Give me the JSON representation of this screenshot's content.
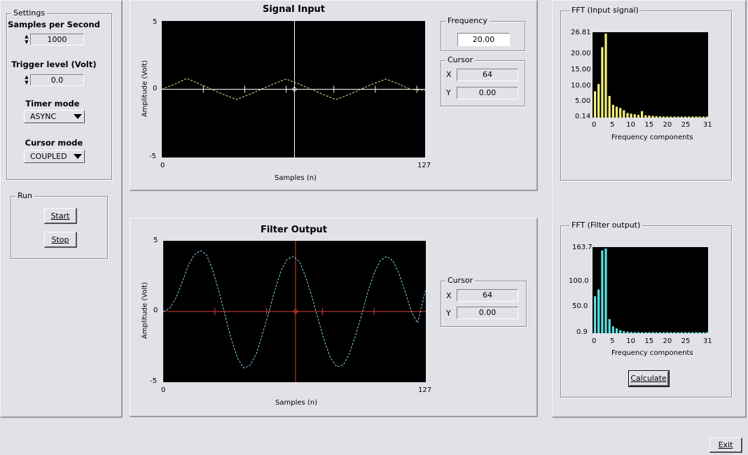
{
  "settings": {
    "group_label": "Settings",
    "samples_label": "Samples per Second",
    "samples_value": "1000",
    "trigger_label": "Trigger level (Volt)",
    "trigger_value": "0.0",
    "timer_label": "Timer mode",
    "timer_value": "ASYNC",
    "cursor_mode_label": "Cursor mode",
    "cursor_mode_value": "COUPLED"
  },
  "run": {
    "group_label": "Run",
    "start_label": "Start",
    "stop_label": "Stop"
  },
  "signal_input": {
    "title": "Signal Input",
    "y_label": "Amplitude (Volt)",
    "x_label": "Samples (n)",
    "y_ticks": [
      "5",
      "0",
      "-5"
    ],
    "x_ticks": [
      "0",
      "127"
    ],
    "frequency_label": "Frequency",
    "frequency_value": "20.00",
    "cursor_label": "Cursor",
    "cursor_x_label": "X",
    "cursor_x_value": "64",
    "cursor_y_label": "Y",
    "cursor_y_value": "0.00"
  },
  "filter_output": {
    "title": "Filter Output",
    "y_label": "Amplitude (Volt)",
    "x_label": "Samples (n)",
    "y_ticks": [
      "5",
      "0",
      "-5"
    ],
    "x_ticks": [
      "0",
      "127"
    ],
    "cursor_label": "Cursor",
    "cursor_x_label": "X",
    "cursor_x_value": "64",
    "cursor_y_label": "Y",
    "cursor_y_value": "0.00"
  },
  "fft_input": {
    "group_label": "FFT  (Input signal)",
    "x_label": "Frequency components",
    "y_ticks": [
      "26.81",
      "20.00",
      "15.00",
      "10.00",
      "5.00",
      "0.14"
    ],
    "x_ticks": [
      "0",
      "5",
      "10",
      "15",
      "20",
      "25",
      "31"
    ]
  },
  "fft_filter": {
    "group_label": "FFT (Filter output)",
    "x_label": "Frequency components",
    "y_ticks": [
      "163.7",
      "100.0",
      "50.0",
      "0.9"
    ],
    "x_ticks": [
      "0",
      "5",
      "10",
      "15",
      "20",
      "25",
      "31"
    ],
    "calculate_label": "Calculate"
  },
  "exit_label": "Exit",
  "colors": {
    "background": "#e1e1e8",
    "plot_background": "#000000",
    "input_wave": "#f0e68c",
    "input_cursor": "#ffffff",
    "output_wave": "#7fd8e8",
    "output_cursor": "#e04030",
    "fft_input_bars": "#f4f07a",
    "fft_filter_bars": "#5ce0e0"
  },
  "chart_data": [
    {
      "type": "line",
      "name": "signal_input",
      "title": "Signal Input",
      "xlabel": "Samples (n)",
      "ylabel": "Amplitude (Volt)",
      "xlim": [
        0,
        127
      ],
      "ylim": [
        -5,
        5
      ],
      "grid": false,
      "cursor": {
        "x": 64,
        "y": 0.0
      },
      "x": [
        0,
        6,
        12,
        18,
        24,
        30,
        36,
        42,
        48,
        54,
        60,
        64,
        66,
        72,
        78,
        84,
        90,
        96,
        102,
        108,
        114,
        120,
        127
      ],
      "y": [
        0.0,
        0.35,
        0.8,
        0.4,
        0.0,
        -0.4,
        -0.75,
        -0.4,
        0.0,
        0.4,
        0.75,
        0.5,
        0.4,
        0.0,
        -0.4,
        -0.75,
        -0.4,
        0.0,
        0.4,
        0.75,
        0.4,
        0.0,
        -0.1
      ]
    },
    {
      "type": "line",
      "name": "filter_output",
      "title": "Filter Output",
      "xlabel": "Samples (n)",
      "ylabel": "Amplitude (Volt)",
      "xlim": [
        0,
        127
      ],
      "ylim": [
        -5,
        5
      ],
      "grid": false,
      "cursor": {
        "x": 64,
        "y": 0.0
      },
      "x": [
        0,
        3,
        6,
        9,
        12,
        15,
        18,
        21,
        24,
        27,
        30,
        33,
        36,
        39,
        42,
        45,
        48,
        51,
        54,
        57,
        60,
        63,
        66,
        69,
        72,
        75,
        78,
        81,
        84,
        87,
        90,
        93,
        96,
        99,
        102,
        105,
        108,
        111,
        114,
        117,
        120,
        123,
        127
      ],
      "y": [
        0.0,
        0.2,
        0.9,
        2.0,
        3.2,
        4.0,
        4.3,
        4.0,
        2.9,
        1.4,
        -0.3,
        -2.0,
        -3.3,
        -4.0,
        -3.8,
        -3.0,
        -1.6,
        -0.1,
        1.5,
        2.9,
        3.7,
        3.9,
        3.5,
        2.4,
        1.0,
        -0.6,
        -2.1,
        -3.3,
        -3.9,
        -3.8,
        -3.0,
        -1.7,
        -0.2,
        1.4,
        2.7,
        3.6,
        3.9,
        3.6,
        2.7,
        1.4,
        0.0,
        -0.8,
        1.6
      ]
    },
    {
      "type": "bar",
      "name": "fft_input",
      "xlabel": "Frequency components",
      "xlim": [
        0,
        31
      ],
      "ylim": [
        0.14,
        26.81
      ],
      "categories": [
        0,
        1,
        2,
        3,
        4,
        5,
        6,
        7,
        8,
        9,
        10,
        11,
        12,
        13,
        14,
        15,
        16,
        17,
        18,
        19,
        20,
        21,
        22,
        23,
        24,
        25,
        26,
        27,
        28,
        29,
        30,
        31
      ],
      "values": [
        8.5,
        10.8,
        22.5,
        26.81,
        7.0,
        4.2,
        3.6,
        3.2,
        2.5,
        1.6,
        1.4,
        1.2,
        1.0,
        2.2,
        0.9,
        0.8,
        0.7,
        0.6,
        0.55,
        0.5,
        0.45,
        0.4,
        0.4,
        0.38,
        0.35,
        0.35,
        0.3,
        0.3,
        0.3,
        0.3,
        0.3,
        0.3
      ]
    },
    {
      "type": "bar",
      "name": "fft_filter",
      "xlabel": "Frequency components",
      "xlim": [
        0,
        31
      ],
      "ylim": [
        0.9,
        163.7
      ],
      "categories": [
        0,
        1,
        2,
        3,
        4,
        5,
        6,
        7,
        8,
        9,
        10,
        11,
        12,
        13,
        14,
        15,
        16,
        17,
        18,
        19,
        20,
        21,
        22,
        23,
        24,
        25,
        26,
        27,
        28,
        29,
        30,
        31
      ],
      "values": [
        72,
        85,
        160,
        163.7,
        28,
        14,
        10,
        7,
        5,
        4,
        3.5,
        3,
        3,
        2.8,
        2.5,
        2.3,
        2.1,
        2,
        2,
        2,
        1.9,
        1.8,
        1.8,
        1.8,
        1.7,
        1.7,
        1.7,
        1.7,
        1.6,
        1.6,
        1.6,
        1.6
      ]
    }
  ]
}
